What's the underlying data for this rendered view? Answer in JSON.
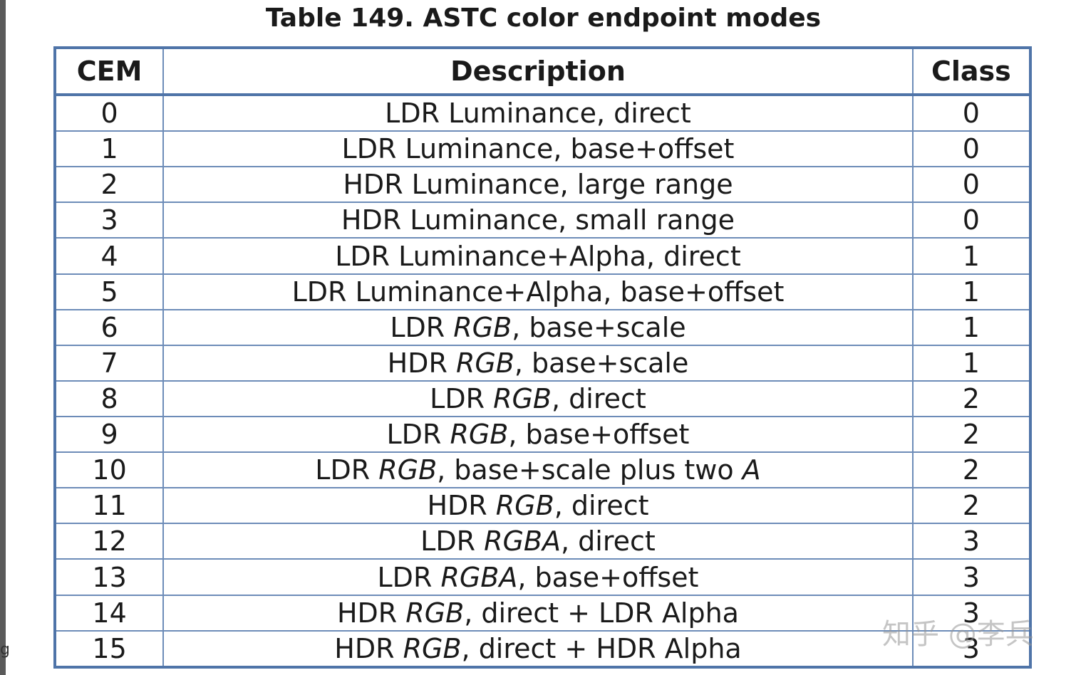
{
  "caption": "Table 149. ASTC color endpoint modes",
  "headers": {
    "cem": "CEM",
    "description": "Description",
    "class": "Class"
  },
  "rows": [
    {
      "cem": "0",
      "desc": [
        {
          "t": "LDR Luminance, direct"
        }
      ],
      "cls": "0"
    },
    {
      "cem": "1",
      "desc": [
        {
          "t": "LDR Luminance, base+offset"
        }
      ],
      "cls": "0"
    },
    {
      "cem": "2",
      "desc": [
        {
          "t": "HDR Luminance, large range"
        }
      ],
      "cls": "0"
    },
    {
      "cem": "3",
      "desc": [
        {
          "t": "HDR Luminance, small range"
        }
      ],
      "cls": "0"
    },
    {
      "cem": "4",
      "desc": [
        {
          "t": "LDR Luminance+Alpha, direct"
        }
      ],
      "cls": "1"
    },
    {
      "cem": "5",
      "desc": [
        {
          "t": "LDR Luminance+Alpha, base+offset"
        }
      ],
      "cls": "1"
    },
    {
      "cem": "6",
      "desc": [
        {
          "t": "LDR "
        },
        {
          "t": "RGB",
          "i": true
        },
        {
          "t": ", base+scale"
        }
      ],
      "cls": "1"
    },
    {
      "cem": "7",
      "desc": [
        {
          "t": "HDR "
        },
        {
          "t": "RGB",
          "i": true
        },
        {
          "t": ", base+scale"
        }
      ],
      "cls": "1"
    },
    {
      "cem": "8",
      "desc": [
        {
          "t": "LDR "
        },
        {
          "t": "RGB",
          "i": true
        },
        {
          "t": ", direct"
        }
      ],
      "cls": "2"
    },
    {
      "cem": "9",
      "desc": [
        {
          "t": "LDR "
        },
        {
          "t": "RGB",
          "i": true
        },
        {
          "t": ", base+offset"
        }
      ],
      "cls": "2"
    },
    {
      "cem": "10",
      "desc": [
        {
          "t": "LDR "
        },
        {
          "t": "RGB",
          "i": true
        },
        {
          "t": ", base+scale plus two "
        },
        {
          "t": "A",
          "i": true
        }
      ],
      "cls": "2"
    },
    {
      "cem": "11",
      "desc": [
        {
          "t": "HDR "
        },
        {
          "t": "RGB",
          "i": true
        },
        {
          "t": ", direct"
        }
      ],
      "cls": "2"
    },
    {
      "cem": "12",
      "desc": [
        {
          "t": "LDR "
        },
        {
          "t": "RGBA",
          "i": true
        },
        {
          "t": ", direct"
        }
      ],
      "cls": "3"
    },
    {
      "cem": "13",
      "desc": [
        {
          "t": "LDR "
        },
        {
          "t": "RGBA",
          "i": true
        },
        {
          "t": ", base+offset"
        }
      ],
      "cls": "3"
    },
    {
      "cem": "14",
      "desc": [
        {
          "t": "HDR "
        },
        {
          "t": "RGB",
          "i": true
        },
        {
          "t": ", direct + LDR Alpha"
        }
      ],
      "cls": "3"
    },
    {
      "cem": "15",
      "desc": [
        {
          "t": "HDR "
        },
        {
          "t": "RGB",
          "i": true
        },
        {
          "t": ", direct + HDR Alpha"
        }
      ],
      "cls": "3"
    }
  ],
  "watermark": "知乎 @李兵",
  "edge_text": "g",
  "colors": {
    "border": "#4f74a8",
    "grid": "#6d8cb8",
    "text": "#1a1a1a"
  }
}
